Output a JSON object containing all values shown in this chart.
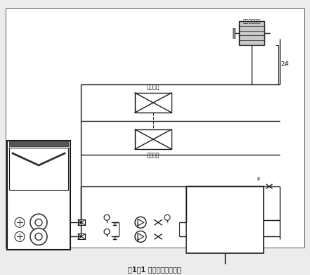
{
  "title": "图1－1 闭水管膨胀点定压",
  "bg_color": "#ececec",
  "line_color": "#1a1a1a",
  "label_top_right": "开式膨胀水箱",
  "label_2h": "2#",
  "label_heat1": "末端风盘",
  "label_heat2": "末端风盘",
  "figsize": [
    4.41,
    3.91
  ],
  "dpi": 100
}
